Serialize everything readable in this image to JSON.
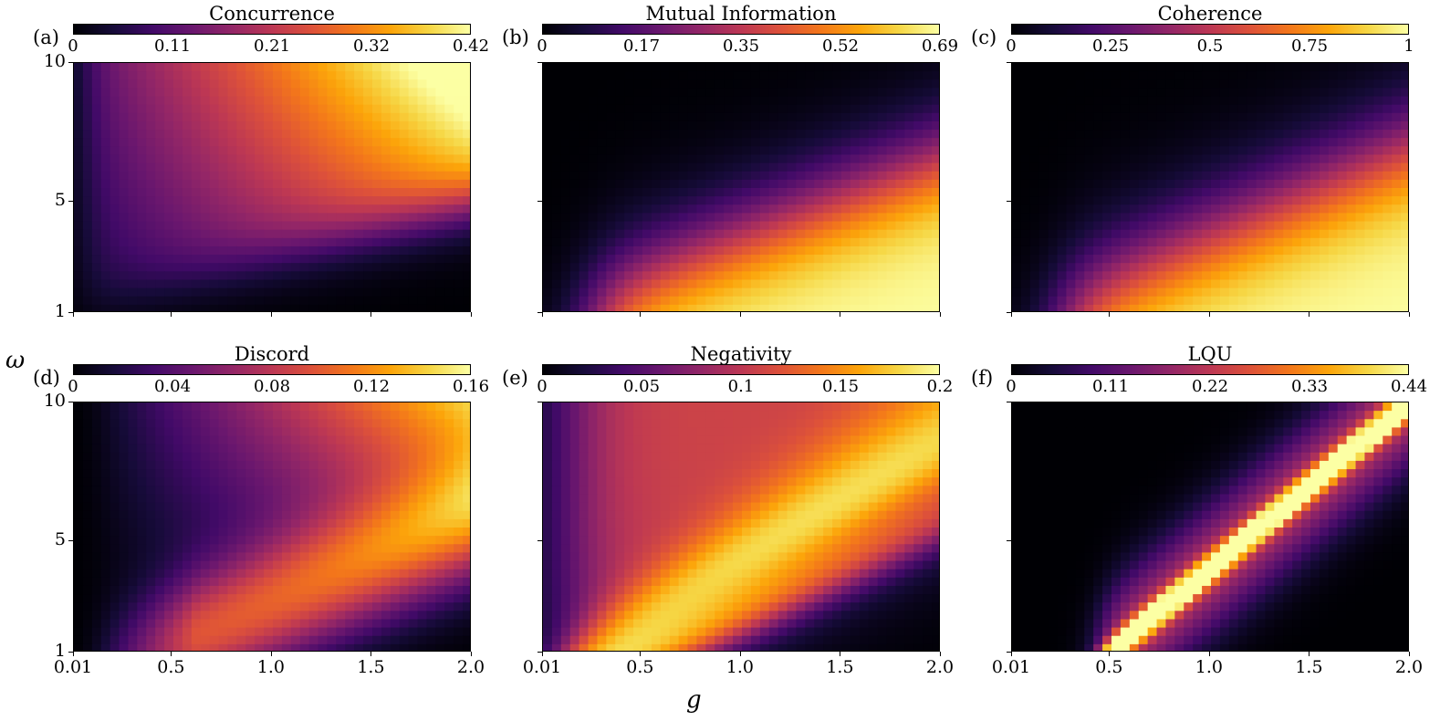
{
  "figure": {
    "xlabel": "g",
    "ylabel": "ω",
    "colormap": "inferno"
  },
  "chart_data": [
    {
      "type": "heatmap",
      "panel": "(a)",
      "title": "Concurrence",
      "xlim": [
        0.01,
        2.0
      ],
      "ylim": [
        1,
        10
      ],
      "x_ticks": [],
      "y_ticks": [
        "1",
        "5",
        "10"
      ],
      "colorbar": {
        "min": 0,
        "max": 0.42,
        "ticks": [
          "0",
          "0.11",
          "0.21",
          "0.32",
          "0.42"
        ]
      },
      "model": "concurrence"
    },
    {
      "type": "heatmap",
      "panel": "(b)",
      "title": "Mutual Information",
      "xlim": [
        0.01,
        2.0
      ],
      "ylim": [
        1,
        10
      ],
      "x_ticks": [],
      "y_ticks": [],
      "colorbar": {
        "min": 0,
        "max": 0.69,
        "ticks": [
          "0",
          "0.17",
          "0.35",
          "0.52",
          "0.69"
        ]
      },
      "model": "mutual"
    },
    {
      "type": "heatmap",
      "panel": "(c)",
      "title": "Coherence",
      "xlim": [
        0.01,
        2.0
      ],
      "ylim": [
        1,
        10
      ],
      "x_ticks": [],
      "y_ticks": [],
      "colorbar": {
        "min": 0,
        "max": 1,
        "ticks": [
          "0",
          "0.25",
          "0.5",
          "0.75",
          "1"
        ]
      },
      "model": "coherence"
    },
    {
      "type": "heatmap",
      "panel": "(d)",
      "title": "Discord",
      "xlim": [
        0.01,
        2.0
      ],
      "ylim": [
        1,
        10
      ],
      "x_ticks": [
        "0.01",
        "0.5",
        "1.0",
        "1.5",
        "2.0"
      ],
      "y_ticks": [
        "1",
        "5",
        "10"
      ],
      "colorbar": {
        "min": 0,
        "max": 0.16,
        "ticks": [
          "0",
          "0.04",
          "0.08",
          "0.12",
          "0.16"
        ]
      },
      "model": "discord"
    },
    {
      "type": "heatmap",
      "panel": "(e)",
      "title": "Negativity",
      "xlim": [
        0.01,
        2.0
      ],
      "ylim": [
        1,
        10
      ],
      "x_ticks": [
        "0.01",
        "0.5",
        "1.0",
        "1.5",
        "2.0"
      ],
      "y_ticks": [],
      "colorbar": {
        "min": 0,
        "max": 0.2,
        "ticks": [
          "0",
          "0.05",
          "0.1",
          "0.15",
          "0.2"
        ]
      },
      "model": "negativity"
    },
    {
      "type": "heatmap",
      "panel": "(f)",
      "title": "LQU",
      "xlim": [
        0.01,
        2.0
      ],
      "ylim": [
        1,
        10
      ],
      "x_ticks": [
        "0.01",
        "0.5",
        "1.0",
        "1.5",
        "2.0"
      ],
      "y_ticks": [],
      "colorbar": {
        "min": 0,
        "max": 0.44,
        "ticks": [
          "0",
          "0.11",
          "0.22",
          "0.33",
          "0.44"
        ]
      },
      "model": "lqu"
    }
  ]
}
